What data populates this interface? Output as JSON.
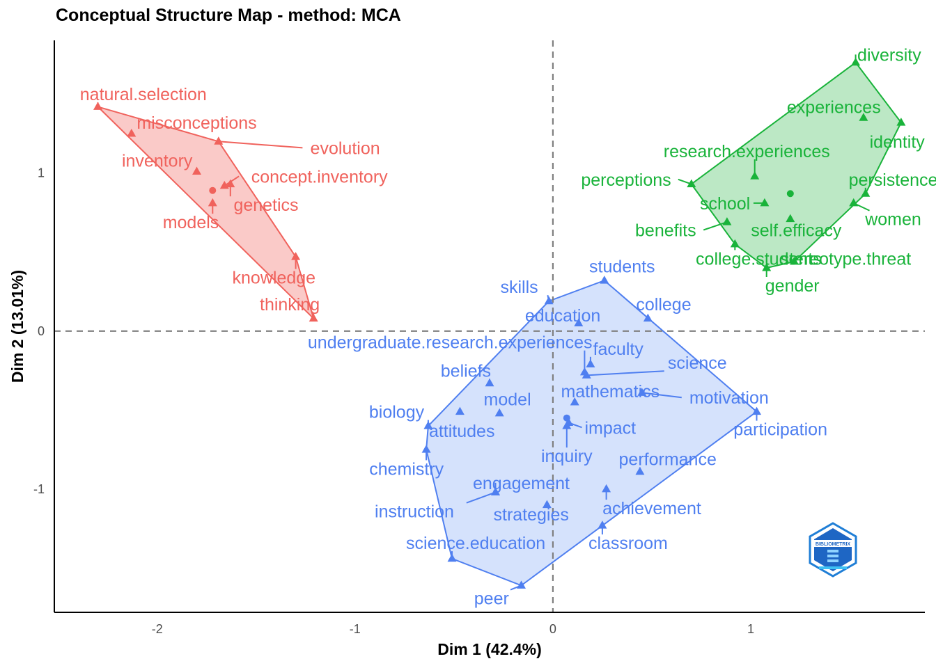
{
  "chart_data": {
    "type": "scatter",
    "title": "Conceptual Structure Map - method: MCA",
    "xlabel": "Dim 1 (42.4%)",
    "ylabel": "Dim 2 (13.01%)",
    "xlim": [
      -2.52,
      1.88
    ],
    "ylim": [
      -1.78,
      1.84
    ],
    "xticks": [
      -2,
      -1,
      0,
      1
    ],
    "yticks": [
      -1,
      0,
      1
    ],
    "reference_lines": {
      "x": 0,
      "y": 0,
      "style": "dashed"
    },
    "grid": false,
    "legend": "none",
    "logo_text": "BIBLIOMETRIX",
    "clusters": [
      {
        "color": "#f0625c",
        "fill": "#f8b8b5",
        "centroid": [
          -1.72,
          0.89
        ],
        "points": [
          {
            "term": "natural.selection",
            "x": -2.3,
            "y": 1.42,
            "lx": -2.07,
            "ly": 1.5
          },
          {
            "term": "misconceptions",
            "x": -2.13,
            "y": 1.25,
            "lx": -1.8,
            "ly": 1.32
          },
          {
            "term": "evolution",
            "x": -1.69,
            "y": 1.2,
            "lx": -1.05,
            "ly": 1.16
          },
          {
            "term": "inventory",
            "x": -1.8,
            "y": 1.01,
            "lx": -2.0,
            "ly": 1.08
          },
          {
            "term": "concept.inventory",
            "x": -1.66,
            "y": 0.92,
            "lx": -1.18,
            "ly": 0.98
          },
          {
            "term": "genetics",
            "x": -1.63,
            "y": 0.93,
            "lx": -1.45,
            "ly": 0.8
          },
          {
            "term": "models",
            "x": -1.72,
            "y": 0.81,
            "lx": -1.83,
            "ly": 0.69
          },
          {
            "term": "knowledge",
            "x": -1.3,
            "y": 0.47,
            "lx": -1.41,
            "ly": 0.34
          },
          {
            "term": "thinking",
            "x": -1.21,
            "y": 0.08,
            "lx": -1.33,
            "ly": 0.17
          }
        ]
      },
      {
        "color": "#19b33a",
        "fill": "#a6e0b1",
        "centroid": [
          1.2,
          0.87
        ],
        "points": [
          {
            "term": "diversity",
            "x": 1.53,
            "y": 1.7,
            "lx": 1.7,
            "ly": 1.75
          },
          {
            "term": "experiences",
            "x": 1.57,
            "y": 1.35,
            "lx": 1.42,
            "ly": 1.42
          },
          {
            "term": "identity",
            "x": 1.76,
            "y": 1.32,
            "lx": 1.74,
            "ly": 1.2
          },
          {
            "term": "research.experiences",
            "x": 1.02,
            "y": 0.98,
            "lx": 0.98,
            "ly": 1.14
          },
          {
            "term": "perceptions",
            "x": 0.7,
            "y": 0.93,
            "lx": 0.37,
            "ly": 0.96
          },
          {
            "term": "persistence",
            "x": 1.58,
            "y": 0.87,
            "lx": 1.72,
            "ly": 0.96
          },
          {
            "term": "school",
            "x": 1.07,
            "y": 0.81,
            "lx": 0.87,
            "ly": 0.81
          },
          {
            "term": "self.efficacy",
            "x": 1.2,
            "y": 0.71,
            "lx": 1.23,
            "ly": 0.64
          },
          {
            "term": "women",
            "x": 1.52,
            "y": 0.81,
            "lx": 1.72,
            "ly": 0.71
          },
          {
            "term": "benefits",
            "x": 0.88,
            "y": 0.69,
            "lx": 0.57,
            "ly": 0.64
          },
          {
            "term": "college.students",
            "x": 0.92,
            "y": 0.55,
            "lx": 1.04,
            "ly": 0.46
          },
          {
            "term": "stereotype.threat",
            "x": 1.22,
            "y": 0.44,
            "lx": 1.48,
            "ly": 0.46
          },
          {
            "term": "gender",
            "x": 1.08,
            "y": 0.4,
            "lx": 1.21,
            "ly": 0.29
          }
        ]
      },
      {
        "color": "#4f7ff0",
        "fill": "#c7d8fb",
        "centroid": [
          0.07,
          -0.55
        ],
        "points": [
          {
            "term": "students",
            "x": 0.26,
            "y": 0.32,
            "lx": 0.35,
            "ly": 0.41
          },
          {
            "term": "skills",
            "x": -0.02,
            "y": 0.19,
            "lx": -0.17,
            "ly": 0.28
          },
          {
            "term": "college",
            "x": 0.48,
            "y": 0.08,
            "lx": 0.56,
            "ly": 0.17
          },
          {
            "term": "education",
            "x": 0.13,
            "y": 0.05,
            "lx": 0.05,
            "ly": 0.1
          },
          {
            "term": "undergraduate.research.experiences",
            "x": 0.16,
            "y": -0.26,
            "lx": -0.52,
            "ly": -0.07
          },
          {
            "term": "faculty",
            "x": 0.19,
            "y": -0.21,
            "lx": 0.33,
            "ly": -0.11
          },
          {
            "term": "science",
            "x": 0.17,
            "y": -0.28,
            "lx": 0.73,
            "ly": -0.2
          },
          {
            "term": "beliefs",
            "x": -0.32,
            "y": -0.33,
            "lx": -0.44,
            "ly": -0.25
          },
          {
            "term": "mathematics",
            "x": 0.11,
            "y": -0.45,
            "lx": 0.29,
            "ly": -0.38
          },
          {
            "term": "motivation",
            "x": 0.45,
            "y": -0.39,
            "lx": 0.89,
            "ly": -0.42
          },
          {
            "term": "model",
            "x": -0.27,
            "y": -0.52,
            "lx": -0.23,
            "ly": -0.43
          },
          {
            "term": "participation",
            "x": 1.03,
            "y": -0.51,
            "lx": 1.15,
            "ly": -0.62
          },
          {
            "term": "biology",
            "x": -0.63,
            "y": -0.6,
            "lx": -0.79,
            "ly": -0.51
          },
          {
            "term": "impact",
            "x": 0.08,
            "y": -0.58,
            "lx": 0.29,
            "ly": -0.61
          },
          {
            "term": "attitudes",
            "x": -0.47,
            "y": -0.51,
            "lx": -0.46,
            "ly": -0.63
          },
          {
            "term": "inquiry",
            "x": 0.07,
            "y": -0.6,
            "lx": 0.07,
            "ly": -0.79
          },
          {
            "term": "performance",
            "x": 0.44,
            "y": -0.89,
            "lx": 0.58,
            "ly": -0.81
          },
          {
            "term": "chemistry",
            "x": -0.64,
            "y": -0.75,
            "lx": -0.74,
            "ly": -0.87
          },
          {
            "term": "engagement",
            "x": -0.29,
            "y": -1.02,
            "lx": -0.16,
            "ly": -0.96
          },
          {
            "term": "achievement",
            "x": 0.27,
            "y": -1.0,
            "lx": 0.5,
            "ly": -1.12
          },
          {
            "term": "instruction",
            "x": -0.29,
            "y": -1.02,
            "lx": -0.7,
            "ly": -1.14
          },
          {
            "term": "strategies",
            "x": -0.03,
            "y": -1.1,
            "lx": -0.11,
            "ly": -1.16
          },
          {
            "term": "classroom",
            "x": 0.25,
            "y": -1.23,
            "lx": 0.38,
            "ly": -1.34
          },
          {
            "term": "science.education",
            "x": -0.51,
            "y": -1.44,
            "lx": -0.39,
            "ly": -1.34
          },
          {
            "term": "peer",
            "x": -0.16,
            "y": -1.61,
            "lx": -0.31,
            "ly": -1.69
          }
        ]
      }
    ]
  }
}
